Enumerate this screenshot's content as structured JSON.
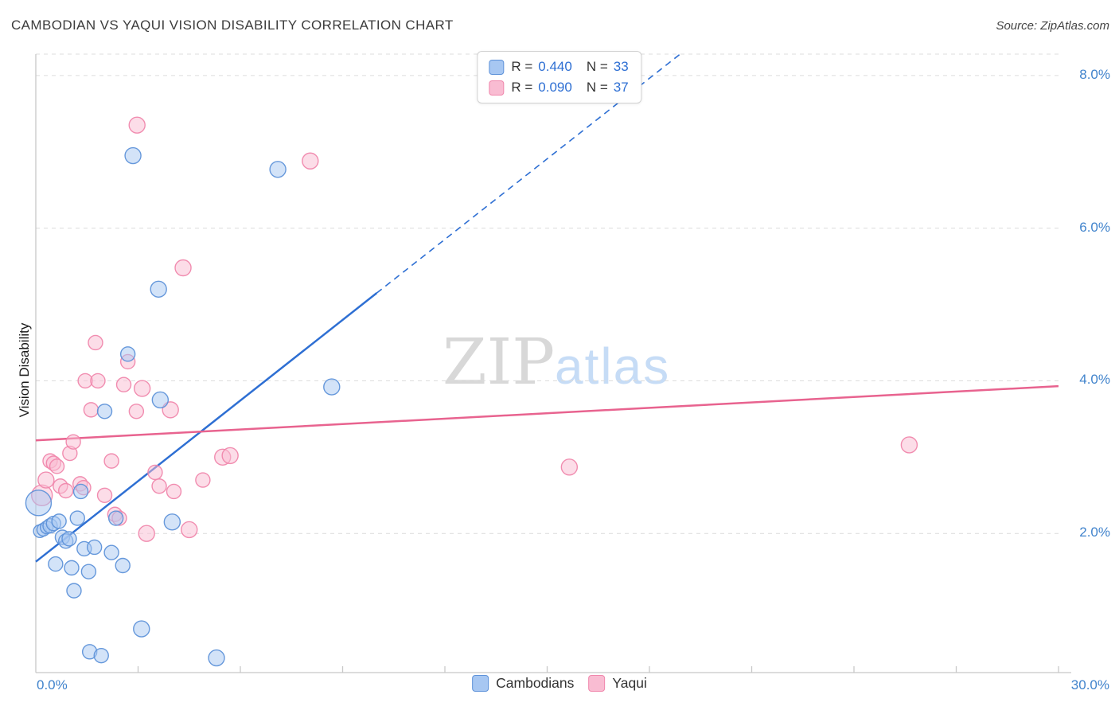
{
  "header": {
    "title": "CAMBODIAN VS YAQUI VISION DISABILITY CORRELATION CHART",
    "source": "Source: ZipAtlas.com"
  },
  "watermark": {
    "part1": "ZIP",
    "part2": "atlas"
  },
  "stats": {
    "series": [
      {
        "series": "cambodian",
        "r_label": "R =",
        "r_value": "0.440",
        "n_label": "N =",
        "n_value": "33"
      },
      {
        "series": "yaqui",
        "r_label": "R =",
        "r_value": "0.090",
        "n_label": "N =",
        "n_value": "37"
      }
    ]
  },
  "legend": {
    "items": [
      {
        "label": "Cambodians",
        "series": "cambodian"
      },
      {
        "label": "Yaqui",
        "series": "yaqui"
      }
    ]
  },
  "colors": {
    "cambodian_fill": "#a7c7f2",
    "cambodian_stroke": "#5e92d9",
    "yaqui_fill": "#f9bcd2",
    "yaqui_stroke": "#f087ac",
    "cambodian_trend": "#2e6fd3",
    "yaqui_trend": "#e8638f",
    "axis_text": "#4083cc",
    "grid": "#dcdcdc",
    "axis": "#c8c8c8"
  },
  "chart_data": {
    "type": "scatter",
    "title": "CAMBODIAN VS YAQUI VISION DISABILITY CORRELATION CHART",
    "xlabel": "",
    "ylabel": "Vision Disability",
    "xlim": [
      0,
      30
    ],
    "ylim": [
      0,
      8.28
    ],
    "x_unit": "%",
    "y_unit": "%",
    "x_tick_labels": [
      "0.0%",
      "30.0%"
    ],
    "y_tick_labels": [
      "8.0%",
      "6.0%",
      "4.0%",
      "2.0%"
    ],
    "y_grid_values": [
      2,
      4,
      6,
      8
    ],
    "x_grid_values": [
      3,
      6,
      9,
      12,
      15,
      18,
      21,
      24,
      27,
      30
    ],
    "grid": "horizontal-dashed",
    "legend_position": "bottom-center",
    "series": [
      {
        "name": "Cambodians",
        "R": 0.44,
        "N": 33,
        "points": [
          [
            0.08,
            2.4,
            16
          ],
          [
            0.12,
            2.03,
            8
          ],
          [
            0.22,
            2.05,
            8
          ],
          [
            0.32,
            2.08,
            8
          ],
          [
            0.42,
            2.1,
            9
          ],
          [
            0.52,
            2.13,
            9
          ],
          [
            0.58,
            1.6,
            9
          ],
          [
            0.68,
            2.16,
            9
          ],
          [
            0.78,
            1.95,
            9
          ],
          [
            0.88,
            1.9,
            9
          ],
          [
            0.98,
            1.93,
            9
          ],
          [
            1.05,
            1.55,
            9
          ],
          [
            1.12,
            1.25,
            9
          ],
          [
            1.22,
            2.2,
            9
          ],
          [
            1.32,
            2.55,
            9
          ],
          [
            1.42,
            1.8,
            9
          ],
          [
            1.55,
            1.5,
            9
          ],
          [
            1.58,
            0.45,
            9
          ],
          [
            1.72,
            1.82,
            9
          ],
          [
            1.92,
            0.4,
            9
          ],
          [
            2.02,
            3.6,
            9
          ],
          [
            2.22,
            1.75,
            9
          ],
          [
            2.35,
            2.2,
            9
          ],
          [
            2.55,
            1.58,
            9
          ],
          [
            2.7,
            4.35,
            9
          ],
          [
            2.85,
            6.95,
            10
          ],
          [
            3.1,
            0.75,
            10
          ],
          [
            3.6,
            5.2,
            10
          ],
          [
            3.65,
            3.75,
            10
          ],
          [
            4.0,
            2.15,
            10
          ],
          [
            5.3,
            0.37,
            10
          ],
          [
            7.1,
            6.77,
            10
          ],
          [
            8.68,
            3.92,
            10
          ]
        ]
      },
      {
        "name": "Yaqui",
        "R": 0.09,
        "N": 37,
        "points": [
          [
            0.18,
            2.5,
            13
          ],
          [
            0.3,
            2.7,
            10
          ],
          [
            0.42,
            2.95,
            9
          ],
          [
            0.52,
            2.92,
            9
          ],
          [
            0.62,
            2.88,
            9
          ],
          [
            0.72,
            2.62,
            9
          ],
          [
            0.88,
            2.56,
            9
          ],
          [
            1.0,
            3.05,
            9
          ],
          [
            1.1,
            3.2,
            9
          ],
          [
            1.3,
            2.65,
            9
          ],
          [
            1.4,
            2.6,
            9
          ],
          [
            1.45,
            4.0,
            9
          ],
          [
            1.62,
            3.62,
            9
          ],
          [
            1.75,
            4.5,
            9
          ],
          [
            1.82,
            4.0,
            9
          ],
          [
            2.02,
            2.5,
            9
          ],
          [
            2.22,
            2.95,
            9
          ],
          [
            2.32,
            2.25,
            9
          ],
          [
            2.45,
            2.2,
            9
          ],
          [
            2.58,
            3.95,
            9
          ],
          [
            2.7,
            4.25,
            9
          ],
          [
            2.95,
            3.6,
            9
          ],
          [
            2.97,
            7.35,
            10
          ],
          [
            3.12,
            3.9,
            10
          ],
          [
            3.25,
            2.0,
            10
          ],
          [
            3.5,
            2.8,
            9
          ],
          [
            3.62,
            2.62,
            9
          ],
          [
            3.95,
            3.62,
            10
          ],
          [
            4.05,
            2.55,
            9
          ],
          [
            4.32,
            5.48,
            10
          ],
          [
            4.5,
            2.05,
            10
          ],
          [
            4.9,
            2.7,
            9
          ],
          [
            5.48,
            3.0,
            10
          ],
          [
            5.7,
            3.02,
            10
          ],
          [
            8.05,
            6.88,
            10
          ],
          [
            15.65,
            2.87,
            10
          ],
          [
            25.62,
            3.16,
            10
          ]
        ]
      }
    ],
    "trend_lines": [
      {
        "series": "Cambodians",
        "solid": [
          [
            0,
            1.63
          ],
          [
            10,
            5.15
          ]
        ],
        "dashed": [
          [
            10,
            5.15
          ],
          [
            18.9,
            8.28
          ]
        ]
      },
      {
        "series": "Yaqui",
        "solid": [
          [
            0,
            3.22
          ],
          [
            30,
            3.93
          ]
        ]
      }
    ]
  }
}
